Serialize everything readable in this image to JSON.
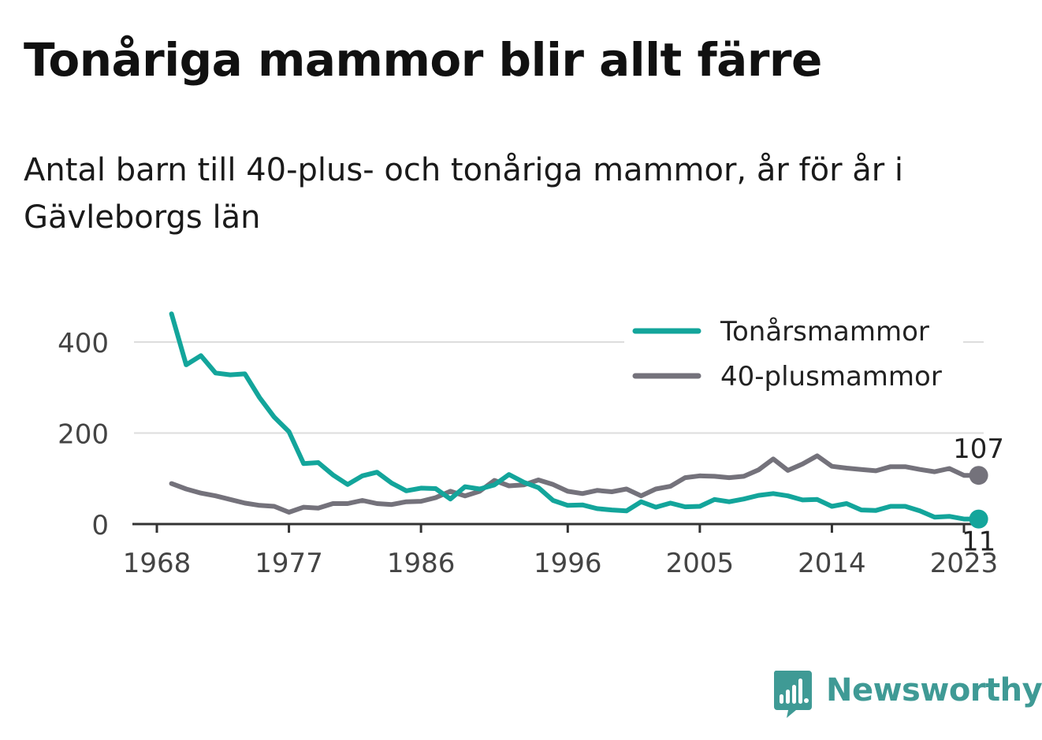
{
  "colors": {
    "teens": "#13a59b",
    "forty_plus": "#74727b",
    "grid": "#dddddd",
    "axis": "#333333",
    "brand": "#3f9a95"
  },
  "brand": {
    "name": "Newsworthy",
    "icon": "bar-chart-speech-bubble-icon"
  },
  "chart_data": {
    "type": "line",
    "title": "Tonåriga mammor blir allt färre",
    "subtitle": "Antal barn till 40-plus- och tonåriga mammor, år för år i Gävleborgs län",
    "xlabel": "",
    "ylabel": "",
    "xlim": [
      1968,
      2025
    ],
    "ylim": [
      0,
      460
    ],
    "yticks": [
      0,
      200,
      400
    ],
    "xticks": [
      1968,
      1977,
      1986,
      1996,
      2005,
      2014,
      2023
    ],
    "grid": true,
    "legend_position": "top-right",
    "x": [
      1969,
      1970,
      1971,
      1972,
      1973,
      1974,
      1975,
      1976,
      1977,
      1978,
      1979,
      1980,
      1981,
      1982,
      1983,
      1984,
      1985,
      1986,
      1987,
      1988,
      1989,
      1990,
      1991,
      1992,
      1993,
      1994,
      1995,
      1996,
      1997,
      1998,
      1999,
      2000,
      2001,
      2002,
      2003,
      2004,
      2005,
      2006,
      2007,
      2008,
      2009,
      2010,
      2011,
      2012,
      2013,
      2014,
      2015,
      2016,
      2017,
      2018,
      2019,
      2020,
      2021,
      2022,
      2023,
      2024
    ],
    "series": [
      {
        "name": "Tonårsmammor",
        "color": "#13a59b",
        "end_label": "11",
        "values": [
          462,
          350,
          370,
          332,
          328,
          330,
          278,
          235,
          203,
          133,
          135,
          108,
          87,
          106,
          114,
          90,
          73,
          79,
          78,
          55,
          82,
          77,
          86,
          109,
          92,
          80,
          52,
          41,
          42,
          34,
          31,
          29,
          49,
          37,
          46,
          38,
          39,
          54,
          49,
          55,
          63,
          67,
          62,
          53,
          54,
          39,
          45,
          31,
          30,
          39,
          39,
          29,
          15,
          17,
          11,
          11
        ]
      },
      {
        "name": "40-plusmammor",
        "color": "#74727b",
        "end_label": "107",
        "values": [
          89,
          77,
          68,
          62,
          54,
          46,
          41,
          39,
          26,
          37,
          35,
          45,
          45,
          52,
          45,
          43,
          49,
          50,
          58,
          72,
          62,
          72,
          96,
          84,
          86,
          97,
          87,
          72,
          67,
          74,
          71,
          77,
          62,
          77,
          83,
          102,
          106,
          105,
          102,
          105,
          119,
          143,
          118,
          132,
          150,
          127,
          123,
          120,
          117,
          126,
          126,
          120,
          115,
          122,
          107,
          107
        ]
      }
    ]
  }
}
